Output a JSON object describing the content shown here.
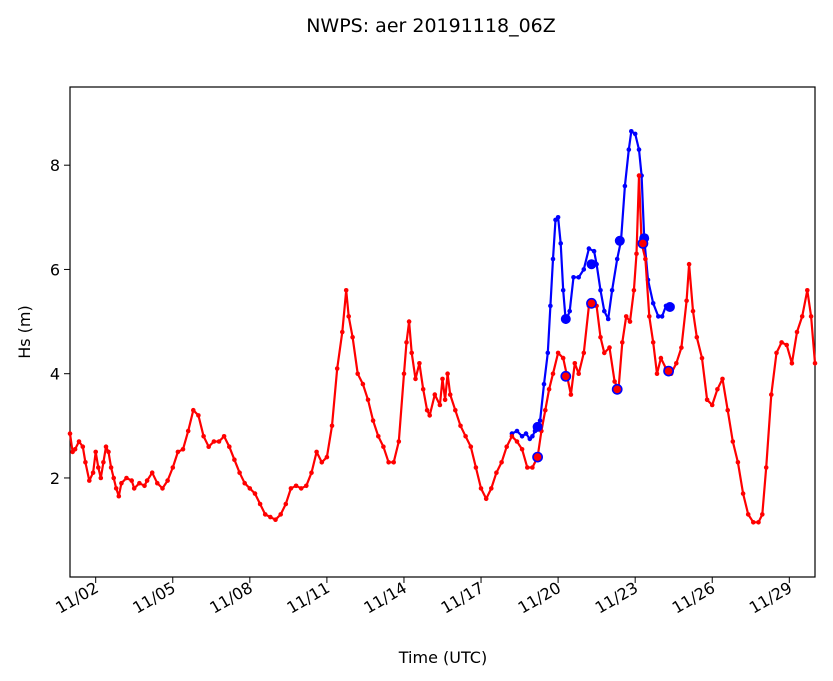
{
  "chart_data": {
    "type": "line",
    "title": "NWPS: aer 20191118_06Z",
    "xlabel": "Time (UTC)",
    "ylabel": "Hs (m)",
    "x_unit": "days since 11/01",
    "xlim": [
      1.0,
      30.0
    ],
    "ylim": [
      0.1,
      9.5
    ],
    "x_ticks": [
      {
        "label": "11/02",
        "value": 2
      },
      {
        "label": "11/05",
        "value": 5
      },
      {
        "label": "11/08",
        "value": 8
      },
      {
        "label": "11/11",
        "value": 11
      },
      {
        "label": "11/14",
        "value": 14
      },
      {
        "label": "11/17",
        "value": 17
      },
      {
        "label": "11/20",
        "value": 20
      },
      {
        "label": "11/23",
        "value": 23
      },
      {
        "label": "11/26",
        "value": 26
      },
      {
        "label": "11/29",
        "value": 29
      }
    ],
    "y_ticks": [
      2,
      4,
      6,
      8
    ],
    "grid": false,
    "series": [
      {
        "name": "",
        "color": "#0000ff",
        "points": [
          [
            18.2,
            2.85
          ],
          [
            18.4,
            2.9
          ],
          [
            18.6,
            2.8
          ],
          [
            18.75,
            2.85
          ],
          [
            18.9,
            2.75
          ],
          [
            19.0,
            2.8
          ],
          [
            19.1,
            2.9
          ],
          [
            19.2,
            3.0
          ],
          [
            19.3,
            3.1
          ],
          [
            19.45,
            3.8
          ],
          [
            19.6,
            4.4
          ],
          [
            19.7,
            5.3
          ],
          [
            19.8,
            6.2
          ],
          [
            19.9,
            6.95
          ],
          [
            20.0,
            7.0
          ],
          [
            20.1,
            6.5
          ],
          [
            20.2,
            5.6
          ],
          [
            20.3,
            5.0
          ],
          [
            20.45,
            5.2
          ],
          [
            20.6,
            5.85
          ],
          [
            20.8,
            5.85
          ],
          [
            21.0,
            6.0
          ],
          [
            21.2,
            6.4
          ],
          [
            21.4,
            6.35
          ],
          [
            21.5,
            6.1
          ],
          [
            21.65,
            5.6
          ],
          [
            21.8,
            5.2
          ],
          [
            21.95,
            5.05
          ],
          [
            22.1,
            5.6
          ],
          [
            22.3,
            6.2
          ],
          [
            22.45,
            6.55
          ],
          [
            22.6,
            7.6
          ],
          [
            22.75,
            8.3
          ],
          [
            22.85,
            8.65
          ],
          [
            23.0,
            8.6
          ],
          [
            23.15,
            8.3
          ],
          [
            23.25,
            7.8
          ],
          [
            23.35,
            6.6
          ],
          [
            23.5,
            5.8
          ],
          [
            23.7,
            5.35
          ],
          [
            23.9,
            5.1
          ],
          [
            24.05,
            5.1
          ],
          [
            24.2,
            5.3
          ],
          [
            24.35,
            5.3
          ],
          [
            24.45,
            5.3
          ]
        ],
        "markers": [
          [
            19.2,
            2.98
          ],
          [
            20.3,
            5.05
          ],
          [
            21.3,
            6.1
          ],
          [
            22.4,
            6.55
          ],
          [
            23.35,
            6.6
          ],
          [
            24.35,
            5.28
          ]
        ]
      },
      {
        "name": "",
        "color": "#ff0000",
        "points": [
          [
            1.0,
            2.85
          ],
          [
            1.1,
            2.5
          ],
          [
            1.2,
            2.55
          ],
          [
            1.35,
            2.7
          ],
          [
            1.5,
            2.6
          ],
          [
            1.6,
            2.3
          ],
          [
            1.75,
            1.95
          ],
          [
            1.9,
            2.1
          ],
          [
            2.0,
            2.5
          ],
          [
            2.1,
            2.2
          ],
          [
            2.2,
            2.0
          ],
          [
            2.3,
            2.3
          ],
          [
            2.4,
            2.6
          ],
          [
            2.5,
            2.5
          ],
          [
            2.6,
            2.2
          ],
          [
            2.7,
            2.0
          ],
          [
            2.8,
            1.8
          ],
          [
            2.9,
            1.65
          ],
          [
            3.0,
            1.9
          ],
          [
            3.2,
            2.0
          ],
          [
            3.4,
            1.95
          ],
          [
            3.5,
            1.8
          ],
          [
            3.7,
            1.9
          ],
          [
            3.9,
            1.85
          ],
          [
            4.0,
            1.95
          ],
          [
            4.2,
            2.1
          ],
          [
            4.4,
            1.9
          ],
          [
            4.6,
            1.8
          ],
          [
            4.8,
            1.95
          ],
          [
            5.0,
            2.2
          ],
          [
            5.2,
            2.5
          ],
          [
            5.4,
            2.55
          ],
          [
            5.6,
            2.9
          ],
          [
            5.8,
            3.3
          ],
          [
            6.0,
            3.2
          ],
          [
            6.2,
            2.8
          ],
          [
            6.4,
            2.6
          ],
          [
            6.6,
            2.7
          ],
          [
            6.8,
            2.7
          ],
          [
            7.0,
            2.8
          ],
          [
            7.2,
            2.6
          ],
          [
            7.4,
            2.35
          ],
          [
            7.6,
            2.1
          ],
          [
            7.8,
            1.9
          ],
          [
            8.0,
            1.8
          ],
          [
            8.2,
            1.7
          ],
          [
            8.4,
            1.5
          ],
          [
            8.6,
            1.3
          ],
          [
            8.8,
            1.25
          ],
          [
            9.0,
            1.2
          ],
          [
            9.2,
            1.3
          ],
          [
            9.4,
            1.5
          ],
          [
            9.6,
            1.8
          ],
          [
            9.8,
            1.85
          ],
          [
            10.0,
            1.8
          ],
          [
            10.2,
            1.85
          ],
          [
            10.4,
            2.1
          ],
          [
            10.6,
            2.5
          ],
          [
            10.8,
            2.3
          ],
          [
            11.0,
            2.4
          ],
          [
            11.2,
            3.0
          ],
          [
            11.4,
            4.1
          ],
          [
            11.6,
            4.8
          ],
          [
            11.75,
            5.6
          ],
          [
            11.85,
            5.1
          ],
          [
            12.0,
            4.7
          ],
          [
            12.2,
            4.0
          ],
          [
            12.4,
            3.8
          ],
          [
            12.6,
            3.5
          ],
          [
            12.8,
            3.1
          ],
          [
            13.0,
            2.8
          ],
          [
            13.2,
            2.6
          ],
          [
            13.4,
            2.3
          ],
          [
            13.6,
            2.3
          ],
          [
            13.8,
            2.7
          ],
          [
            14.0,
            4.0
          ],
          [
            14.1,
            4.6
          ],
          [
            14.2,
            5.0
          ],
          [
            14.3,
            4.4
          ],
          [
            14.45,
            3.9
          ],
          [
            14.6,
            4.2
          ],
          [
            14.75,
            3.7
          ],
          [
            14.9,
            3.3
          ],
          [
            15.0,
            3.2
          ],
          [
            15.2,
            3.6
          ],
          [
            15.4,
            3.4
          ],
          [
            15.5,
            3.9
          ],
          [
            15.6,
            3.5
          ],
          [
            15.7,
            4.0
          ],
          [
            15.8,
            3.6
          ],
          [
            16.0,
            3.3
          ],
          [
            16.2,
            3.0
          ],
          [
            16.4,
            2.8
          ],
          [
            16.6,
            2.6
          ],
          [
            16.8,
            2.2
          ],
          [
            17.0,
            1.8
          ],
          [
            17.2,
            1.6
          ],
          [
            17.4,
            1.8
          ],
          [
            17.6,
            2.1
          ],
          [
            17.8,
            2.3
          ],
          [
            18.0,
            2.6
          ],
          [
            18.2,
            2.8
          ],
          [
            18.4,
            2.7
          ],
          [
            18.6,
            2.55
          ],
          [
            18.8,
            2.2
          ],
          [
            19.0,
            2.2
          ],
          [
            19.2,
            2.4
          ],
          [
            19.35,
            2.9
          ],
          [
            19.5,
            3.3
          ],
          [
            19.65,
            3.7
          ],
          [
            19.8,
            4.0
          ],
          [
            20.0,
            4.4
          ],
          [
            20.2,
            4.3
          ],
          [
            20.35,
            3.95
          ],
          [
            20.5,
            3.6
          ],
          [
            20.65,
            4.2
          ],
          [
            20.8,
            4.0
          ],
          [
            21.0,
            4.4
          ],
          [
            21.2,
            5.3
          ],
          [
            21.35,
            5.4
          ],
          [
            21.5,
            5.3
          ],
          [
            21.65,
            4.7
          ],
          [
            21.8,
            4.4
          ],
          [
            22.0,
            4.5
          ],
          [
            22.2,
            3.85
          ],
          [
            22.35,
            3.7
          ],
          [
            22.5,
            4.6
          ],
          [
            22.65,
            5.1
          ],
          [
            22.8,
            5.0
          ],
          [
            22.95,
            5.6
          ],
          [
            23.05,
            6.3
          ],
          [
            23.15,
            7.8
          ],
          [
            23.25,
            6.5
          ],
          [
            23.4,
            6.2
          ],
          [
            23.55,
            5.1
          ],
          [
            23.7,
            4.6
          ],
          [
            23.85,
            4.0
          ],
          [
            24.0,
            4.3
          ],
          [
            24.2,
            4.1
          ],
          [
            24.4,
            4.0
          ],
          [
            24.6,
            4.2
          ],
          [
            24.8,
            4.5
          ],
          [
            25.0,
            5.4
          ],
          [
            25.1,
            6.1
          ],
          [
            25.25,
            5.2
          ],
          [
            25.4,
            4.7
          ],
          [
            25.6,
            4.3
          ],
          [
            25.8,
            3.5
          ],
          [
            26.0,
            3.4
          ],
          [
            26.2,
            3.7
          ],
          [
            26.4,
            3.9
          ],
          [
            26.6,
            3.3
          ],
          [
            26.8,
            2.7
          ],
          [
            27.0,
            2.3
          ],
          [
            27.2,
            1.7
          ],
          [
            27.4,
            1.3
          ],
          [
            27.6,
            1.15
          ],
          [
            27.8,
            1.15
          ],
          [
            27.95,
            1.3
          ],
          [
            28.1,
            2.2
          ],
          [
            28.3,
            3.6
          ],
          [
            28.5,
            4.4
          ],
          [
            28.7,
            4.6
          ],
          [
            28.9,
            4.55
          ],
          [
            29.1,
            4.2
          ],
          [
            29.3,
            4.8
          ],
          [
            29.5,
            5.1
          ],
          [
            29.7,
            5.6
          ],
          [
            29.85,
            5.1
          ],
          [
            30.0,
            4.2
          ]
        ],
        "markers": [
          [
            19.2,
            2.4
          ],
          [
            20.3,
            3.95
          ],
          [
            21.3,
            5.35
          ],
          [
            22.3,
            3.7
          ],
          [
            23.3,
            6.5
          ],
          [
            24.3,
            4.05
          ]
        ]
      }
    ]
  }
}
